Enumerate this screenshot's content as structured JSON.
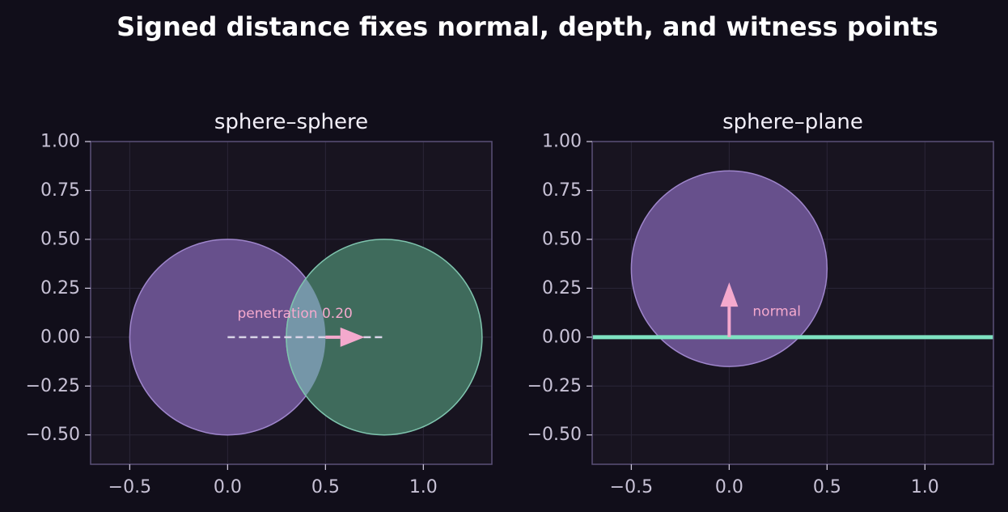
{
  "figure": {
    "title": "Signed distance fixes normal, depth, and witness points"
  },
  "colors": {
    "background": "#110e1a",
    "axes_face": "#181420",
    "spine": "#5a5078",
    "grid": "#2b2638",
    "tick_text": "#c8c2d6",
    "title_text": "#f2eff8",
    "sphere_a_fill": "#67508c",
    "sphere_a_edge": "#9f86cc",
    "sphere_b_fill": "#3f6b5c",
    "sphere_b_edge": "#7fc4ae",
    "overlap_fill": "#7596a8",
    "accent_pink": "#f4a9cd",
    "dash_line": "#d8d3e6",
    "plane": "#7fe3c2"
  },
  "chart_data": [
    {
      "type": "scatter",
      "title": "sphere–sphere",
      "xlim": [
        -0.7,
        1.35
      ],
      "ylim": [
        -0.65,
        1.0
      ],
      "xticks": [
        -0.5,
        0.0,
        0.5,
        1.0
      ],
      "xtick_labels": [
        "−0.5",
        "0.0",
        "0.5",
        "1.0"
      ],
      "yticks": [
        -0.5,
        -0.25,
        0.0,
        0.25,
        0.5,
        0.75,
        1.0
      ],
      "ytick_labels": [
        "−0.50",
        "−0.25",
        "0.00",
        "0.25",
        "0.50",
        "0.75",
        "1.00"
      ],
      "grid": true,
      "circles": [
        {
          "name": "sphere A",
          "cx": 0.0,
          "cy": 0.0,
          "r": 0.5
        },
        {
          "name": "sphere B",
          "cx": 0.8,
          "cy": 0.0,
          "r": 0.5
        }
      ],
      "segment": {
        "x1": 0.0,
        "y1": 0.0,
        "x2": 0.8,
        "y2": 0.0
      },
      "arrow": {
        "x": 0.5,
        "y": 0.0,
        "dx": 0.2,
        "dy": 0.0
      },
      "annotation": {
        "text": "penetration 0.20",
        "x": 0.05,
        "y": 0.12
      }
    },
    {
      "type": "scatter",
      "title": "sphere–plane",
      "xlim": [
        -0.7,
        1.35
      ],
      "ylim": [
        -0.65,
        1.0
      ],
      "xticks": [
        -0.5,
        0.0,
        0.5,
        1.0
      ],
      "xtick_labels": [
        "−0.5",
        "0.0",
        "0.5",
        "1.0"
      ],
      "yticks": [
        -0.5,
        -0.25,
        0.0,
        0.25,
        0.5,
        0.75,
        1.0
      ],
      "ytick_labels": [
        "−0.50",
        "−0.25",
        "0.00",
        "0.25",
        "0.50",
        "0.75",
        "1.00"
      ],
      "grid": true,
      "circles": [
        {
          "name": "sphere",
          "cx": 0.0,
          "cy": 0.35,
          "r": 0.5
        }
      ],
      "plane_y": 0.0,
      "arrow": {
        "x": 0.0,
        "y": 0.0,
        "dx": 0.0,
        "dy": 0.28
      },
      "annotation": {
        "text": "normal",
        "x": 0.12,
        "y": 0.13
      }
    }
  ]
}
